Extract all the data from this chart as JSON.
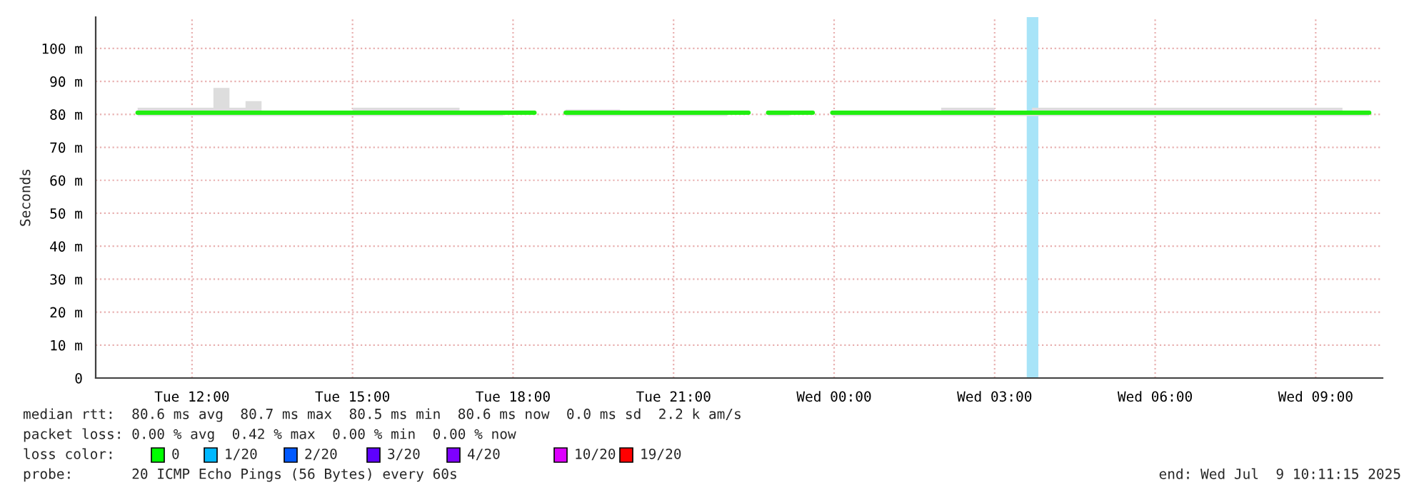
{
  "chart_data": {
    "type": "line",
    "ylabel": "Seconds",
    "x": [
      "2025-07-08T10:59",
      "2025-07-08T11:30",
      "2025-07-08T12:00",
      "2025-07-08T12:24",
      "2025-07-08T12:30",
      "2025-07-08T12:42",
      "2025-07-08T13:00",
      "2025-07-08T13:18",
      "2025-07-08T14:00",
      "2025-07-08T15:00",
      "2025-07-08T16:00",
      "2025-07-08T17:00",
      "2025-07-08T17:49",
      "2025-07-08T18:24",
      "2025-07-08T18:59",
      "2025-07-08T20:00",
      "2025-07-08T21:00",
      "2025-07-08T22:00",
      "2025-07-08T22:24",
      "2025-07-08T22:46",
      "2025-07-08T23:10",
      "2025-07-08T23:36",
      "2025-07-08T23:58",
      "2025-07-09T01:00",
      "2025-07-09T02:00",
      "2025-07-09T03:00",
      "2025-07-09T03:42",
      "2025-07-09T04:30",
      "2025-07-09T05:30",
      "2025-07-09T06:30",
      "2025-07-09T07:30",
      "2025-07-09T08:30",
      "2025-07-09T09:30",
      "2025-07-09T10:00"
    ],
    "series": [
      {
        "color": "#22ee11",
        "values": [
          80.5,
          80.5,
          80.5,
          80.5,
          80.5,
          80.5,
          80.5,
          80.5,
          80.5,
          80.5,
          80.5,
          80.5,
          80.5,
          null,
          80.5,
          80.5,
          80.5,
          80.5,
          null,
          80.5,
          80.5,
          null,
          80.5,
          80.5,
          80.5,
          80.5,
          80.5,
          80.5,
          80.5,
          80.5,
          80.5,
          80.5,
          80.5,
          80.5
        ],
        "lower": [
          79.5,
          79.5,
          79.5,
          79.5,
          79.5,
          79.5,
          79.5,
          79.5,
          79.5,
          79.5,
          79.5,
          79.5,
          79.5,
          null,
          79.5,
          79.5,
          79.5,
          79.5,
          null,
          79.5,
          79.5,
          null,
          79.5,
          79.5,
          79.5,
          79.5,
          79.5,
          79.5,
          79.5,
          79.5,
          79.5,
          79.5,
          79.5,
          79.5
        ],
        "upper": [
          82,
          82,
          82,
          88,
          88,
          82,
          84,
          81,
          81,
          82,
          82,
          81,
          81,
          null,
          81.5,
          81,
          81,
          81,
          null,
          81,
          81,
          null,
          81,
          81,
          82,
          81,
          82,
          82,
          82,
          82,
          82,
          82,
          81,
          81
        ]
      }
    ],
    "xlim": [
      "2025-07-08T10:12",
      "2025-07-09T10:15"
    ],
    "xticks": [
      {
        "value": "2025-07-08T12:00",
        "label": "Tue 12:00"
      },
      {
        "value": "2025-07-08T15:00",
        "label": "Tue 15:00"
      },
      {
        "value": "2025-07-08T18:00",
        "label": "Tue 18:00"
      },
      {
        "value": "2025-07-08T21:00",
        "label": "Tue 21:00"
      },
      {
        "value": "2025-07-09T00:00",
        "label": "Wed 00:00"
      },
      {
        "value": "2025-07-09T03:00",
        "label": "Wed 03:00"
      },
      {
        "value": "2025-07-09T06:00",
        "label": "Wed 06:00"
      },
      {
        "value": "2025-07-09T09:00",
        "label": "Wed 09:00"
      }
    ],
    "ylim": [
      0,
      109.5
    ],
    "yticks": [
      0,
      {
        "value": 10,
        "label": "10 m"
      },
      {
        "value": 20,
        "label": "20 m"
      },
      {
        "value": 30,
        "label": "30 m"
      },
      {
        "value": 40,
        "label": "40 m"
      },
      {
        "value": 50,
        "label": "50 m"
      },
      {
        "value": 60,
        "label": "60 m"
      },
      {
        "value": 70,
        "label": "70 m"
      },
      {
        "value": 80,
        "label": "80 m"
      },
      {
        "value": 90,
        "label": "90 m"
      },
      {
        "value": 100,
        "label": "100 m"
      }
    ],
    "bands": [
      {
        "axis": "x",
        "from": "2025-07-09T03:36",
        "to": "2025-07-09T03:49",
        "color": "#a8e4f8"
      }
    ],
    "grid": true,
    "line_style": "solid",
    "marker": "none",
    "annotations": [
      "median rtt:  80.6 ms avg  80.7 ms max  80.5 ms min  80.6 ms now  0.0 ms sd  2.2 k am/s",
      "packet loss: 0.00 % avg  0.42 % max  0.00 % min  0.00 % now",
      "loss color:",
      "0",
      "1/20",
      "2/20",
      "3/20",
      "4/20",
      "10/20",
      "19/20",
      "probe:       20 ICMP Echo Pings (56 Bytes) every 60s",
      "end: Wed Jul  9 10:11:15 2025"
    ]
  }
}
